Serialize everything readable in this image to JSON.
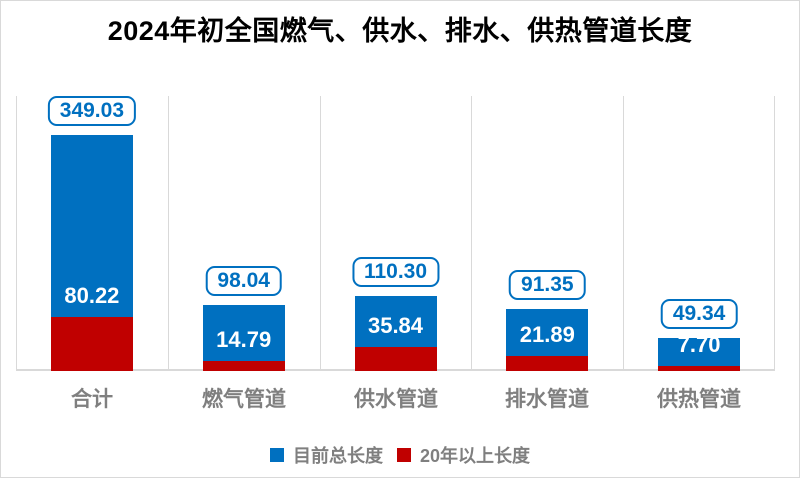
{
  "title": "2024年初全国燃气、供水、排水、供热管道长度",
  "colors": {
    "total_series": "#0070C0",
    "over20_series": "#C00000",
    "gridline": "#D9D9D9",
    "axis_text": "#7F7F7F",
    "title_text": "#000000",
    "label_box_border": "#0070C0",
    "label_box_text": "#0070C0",
    "segment_label_text": "#FFFFFF"
  },
  "chart_data": {
    "type": "bar",
    "title": "2024年初全国燃气、供水、排水、供热管道长度",
    "categories": [
      "合计",
      "燃气管道",
      "供水管道",
      "排水管道",
      "供热管道"
    ],
    "series": [
      {
        "name": "目前总长度",
        "color": "#0070C0",
        "values": [
          349.03,
          98.04,
          110.3,
          91.35,
          49.34
        ],
        "labels": [
          "349.03",
          "98.04",
          "110.30",
          "91.35",
          "49.34"
        ],
        "label_style": "boxed-above-bar"
      },
      {
        "name": "20年以上长度",
        "color": "#C00000",
        "values": [
          80.22,
          14.79,
          35.84,
          21.89,
          7.7
        ],
        "labels": [
          "80.22",
          "14.79",
          "35.84",
          "21.89",
          "7.70"
        ],
        "label_style": "white-text-above-segment"
      }
    ],
    "xlabel": "",
    "ylabel": "",
    "ylim": [
      0,
      380
    ],
    "y_axis_visible": false,
    "grid": "vertical-category-separators",
    "legend_position": "bottom-center"
  }
}
